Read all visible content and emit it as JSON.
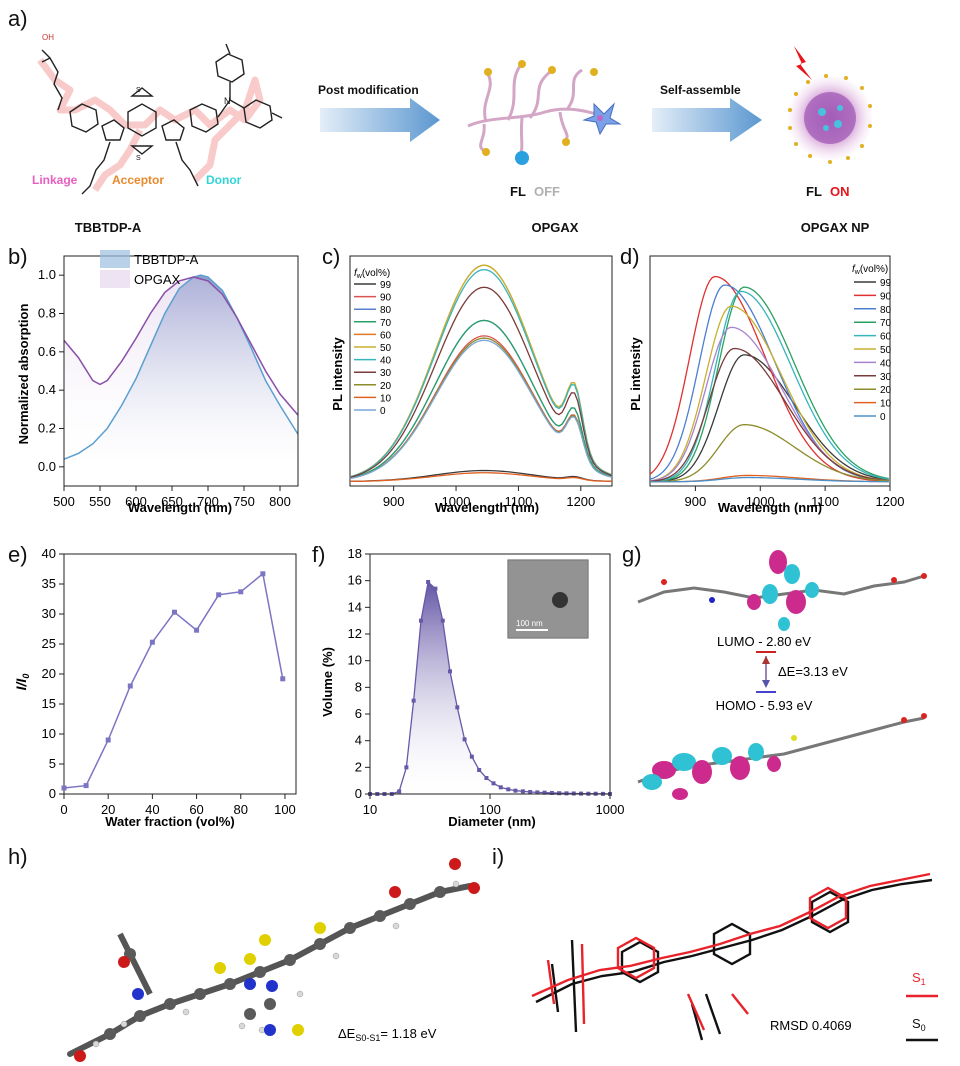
{
  "panel_letters": {
    "a": "a)",
    "b": "b)",
    "c": "c)",
    "d": "d)",
    "e": "e)",
    "f": "f)",
    "g": "g)",
    "h": "h)",
    "i": "i)"
  },
  "panel_a": {
    "molecule_name": "TBBTDP-A",
    "functional_parts": [
      "Linkage",
      "Acceptor",
      "Donor"
    ],
    "arrow1_label": "Post modification",
    "arrow2_label": "Self-assemble",
    "polymer_name": "OPGAX",
    "np_name": "OPGAX NP",
    "fl_prefix": "FL",
    "fl_off": "OFF",
    "fl_on": "ON",
    "colors": {
      "linkage": "#e85fc0",
      "acceptor": "#e8892c",
      "donor": "#2fd5d5",
      "off": "#b0b0b0",
      "on": "#e8131b"
    }
  },
  "charts": {
    "b": {
      "type": "area",
      "xlabel": "Wavelength (nm)",
      "ylabel": "Normalized absorption",
      "xlim": [
        500,
        825
      ],
      "ylim": [
        -0.1,
        1.1
      ],
      "xticks": [
        "500",
        "550",
        "600",
        "650",
        "700",
        "750",
        "800"
      ],
      "yticks": [
        "0.0",
        "0.2",
        "0.4",
        "0.6",
        "0.8",
        "1.0"
      ],
      "legend": [
        "TBBTDP-A",
        "OPGAX"
      ],
      "series": [
        {
          "name": "TBBTDP-A",
          "color": "#5b9fd0",
          "x": [
            500,
            520,
            540,
            560,
            580,
            600,
            620,
            640,
            660,
            680,
            690,
            700,
            720,
            740,
            760,
            780,
            800,
            825
          ],
          "y": [
            0.04,
            0.07,
            0.12,
            0.2,
            0.32,
            0.46,
            0.63,
            0.8,
            0.93,
            0.99,
            1.0,
            0.99,
            0.92,
            0.78,
            0.62,
            0.45,
            0.32,
            0.17
          ]
        },
        {
          "name": "OPGAX",
          "color": "#8a4fa8",
          "x": [
            500,
            520,
            540,
            550,
            560,
            580,
            600,
            620,
            640,
            660,
            680,
            690,
            700,
            720,
            740,
            760,
            780,
            800,
            825
          ],
          "y": [
            0.66,
            0.57,
            0.45,
            0.43,
            0.45,
            0.55,
            0.67,
            0.8,
            0.91,
            0.97,
            0.99,
            0.98,
            0.97,
            0.9,
            0.78,
            0.64,
            0.5,
            0.38,
            0.27
          ]
        }
      ]
    },
    "c": {
      "type": "line",
      "xlabel": "Wavelength (nm)",
      "ylabel": "PL intensity",
      "xlim": [
        830,
        1250
      ],
      "ylim": [
        0,
        1
      ],
      "xticks": [
        "900",
        "1000",
        "1100",
        "1200"
      ],
      "legend_title": "f_w(vol%)",
      "legend_title_f": "f",
      "legend_title_sub": "w",
      "legend_title_rest": "(vol%)",
      "series": [
        {
          "name": "99",
          "color": "#3a3a3a",
          "peak": 0.05
        },
        {
          "name": "90",
          "color": "#d9534f",
          "peak": 0.66
        },
        {
          "name": "80",
          "color": "#5a7fd0",
          "peak": 0.73
        },
        {
          "name": "70",
          "color": "#27a067",
          "peak": 0.73
        },
        {
          "name": "60",
          "color": "#e07a28",
          "peak": 0.98
        },
        {
          "name": "50",
          "color": "#c8b030",
          "peak": 0.98
        },
        {
          "name": "40",
          "color": "#36b5bd",
          "peak": 0.96
        },
        {
          "name": "30",
          "color": "#7a3b3b",
          "peak": 0.88
        },
        {
          "name": "20",
          "color": "#8c8c2a",
          "peak": 0.65
        },
        {
          "name": "10",
          "color": "#e06020",
          "peak": 0.04
        },
        {
          "name": "0",
          "color": "#7aa7d8",
          "peak": 0.64
        }
      ]
    },
    "d": {
      "type": "line",
      "xlabel": "Wavelength (nm)",
      "ylabel": "PL intensity",
      "xlim": [
        830,
        1200
      ],
      "ylim": [
        0,
        1
      ],
      "xticks": [
        "900",
        "1000",
        "1100",
        "1200"
      ],
      "legend_title_f": "f",
      "legend_title_sub": "w",
      "legend_title_rest": "(vol%)",
      "series": [
        {
          "name": "99",
          "color": "#3a3a3a",
          "peak": 0.6,
          "center": 975
        },
        {
          "name": "90",
          "color": "#e03030",
          "peak": 0.97,
          "center": 930
        },
        {
          "name": "80",
          "color": "#4a7fd0",
          "peak": 0.93,
          "center": 945
        },
        {
          "name": "70",
          "color": "#2aa060",
          "peak": 0.92,
          "center": 975
        },
        {
          "name": "60",
          "color": "#36b5bd",
          "peak": 0.9,
          "center": 970
        },
        {
          "name": "50",
          "color": "#c8b030",
          "peak": 0.83,
          "center": 955
        },
        {
          "name": "40",
          "color": "#a884d0",
          "peak": 0.73,
          "center": 955
        },
        {
          "name": "30",
          "color": "#7a3b3b",
          "peak": 0.63,
          "center": 960
        },
        {
          "name": "20",
          "color": "#8c8c2a",
          "peak": 0.27,
          "center": 975
        },
        {
          "name": "10",
          "color": "#e06020",
          "peak": 0.03,
          "center": 980
        },
        {
          "name": "0",
          "color": "#4a90c8",
          "peak": 0.02,
          "center": 980
        }
      ]
    },
    "e": {
      "type": "line",
      "xlabel": "Water fraction (vol%)",
      "ylabel": "I/I0",
      "ylabel_I": "I",
      "ylabel_slash": "/",
      "ylabel_I0": "I",
      "ylabel_0": "0",
      "xlim": [
        0,
        105
      ],
      "ylim": [
        0,
        40
      ],
      "xticks": [
        "0",
        "20",
        "40",
        "60",
        "80",
        "100"
      ],
      "yticks": [
        "0",
        "5",
        "10",
        "15",
        "20",
        "25",
        "30",
        "35",
        "40"
      ],
      "x": [
        0,
        10,
        20,
        30,
        40,
        50,
        60,
        70,
        80,
        90,
        99
      ],
      "y": [
        1.0,
        1.4,
        9.0,
        18.0,
        25.3,
        30.3,
        27.3,
        33.2,
        33.7,
        36.7,
        19.2
      ],
      "color": "#7b75c4"
    },
    "f": {
      "type": "area",
      "xlabel": "Diameter (nm)",
      "ylabel": "Volume (%)",
      "xscale": "log",
      "xlim": [
        10,
        1000
      ],
      "ylim": [
        0,
        18
      ],
      "xticks": [
        "10",
        "100",
        "1000"
      ],
      "yticks": [
        "0",
        "2",
        "4",
        "6",
        "8",
        "10",
        "12",
        "14",
        "16",
        "18"
      ],
      "x": [
        10,
        11.5,
        13.2,
        15.2,
        17.5,
        20.1,
        23.1,
        26.6,
        30.5,
        35.1,
        40.4,
        46.4,
        53.4,
        61.4,
        70.6,
        81.2,
        93.4,
        107,
        123,
        142,
        163,
        188,
        216,
        248,
        285,
        328,
        377,
        434,
        499,
        574,
        660,
        759,
        873,
        1000
      ],
      "y": [
        0,
        0,
        0,
        0,
        0.2,
        2.0,
        7.0,
        13.0,
        15.9,
        15.4,
        13.0,
        9.2,
        6.5,
        4.1,
        2.8,
        1.8,
        1.2,
        0.8,
        0.5,
        0.35,
        0.25,
        0.2,
        0.15,
        0.12,
        0.1,
        0.08,
        0.06,
        0.05,
        0.04,
        0.03,
        0.02,
        0.02,
        0.01,
        0
      ],
      "color": "#6659a8",
      "inset_scale": "100 nm"
    }
  },
  "panel_g": {
    "lumo": "LUMO - 2.80 eV",
    "homo": "HOMO - 5.93 eV",
    "gap": "ΔE=3.13 eV"
  },
  "panel_h": {
    "delta_prefix": "ΔE",
    "delta_sub": "S0-S1",
    "delta_value": "= 1.18 eV"
  },
  "panel_i": {
    "rmsd": "RMSD 0.4069",
    "s1": "S",
    "s1_sub": "1",
    "s0": "S",
    "s0_sub": "0",
    "s1_color": "#e8232b",
    "s0_color": "#111111"
  }
}
